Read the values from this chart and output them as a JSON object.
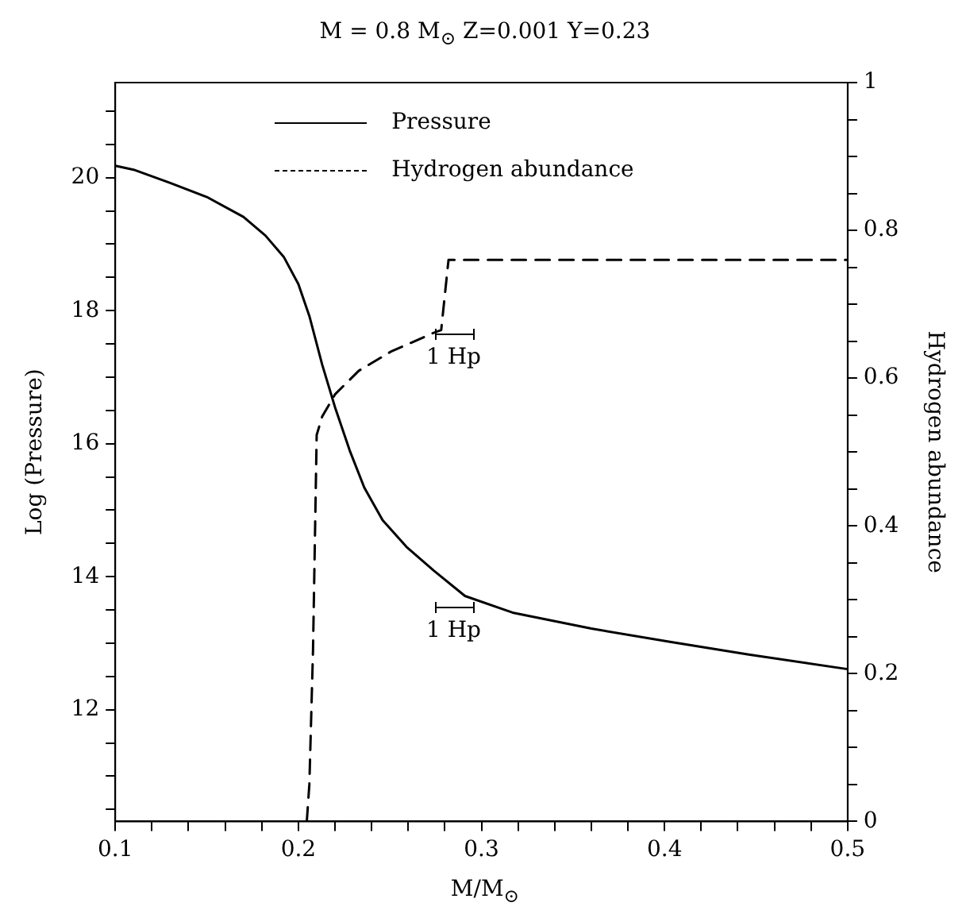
{
  "chart_data": {
    "type": "line",
    "title": "M = 0.8 M$_{⊙}$ Z=0.001 Y=0.23",
    "xlabel": "M/M$_{⊙}$",
    "ylabel": "Log (Pressure)",
    "y2label": "Hydrogen abundance",
    "xlim": [
      0.1,
      0.5
    ],
    "xticks": [
      0.1,
      {
        "value": 0.12,
        "label": null
      },
      {
        "value": 0.14,
        "label": null
      },
      {
        "value": 0.16,
        "label": null
      },
      {
        "value": 0.18,
        "label": null
      },
      0.2,
      {
        "value": 0.22,
        "label": null
      },
      {
        "value": 0.24,
        "label": null
      },
      {
        "value": 0.26,
        "label": null
      },
      {
        "value": 0.28,
        "label": null
      },
      0.3,
      {
        "value": 0.32,
        "label": null
      },
      {
        "value": 0.34,
        "label": null
      },
      {
        "value": 0.36,
        "label": null
      },
      {
        "value": 0.38,
        "label": null
      },
      0.4,
      {
        "value": 0.42,
        "label": null
      },
      {
        "value": 0.44,
        "label": null
      },
      {
        "value": 0.46,
        "label": null
      },
      {
        "value": 0.48,
        "label": null
      },
      0.5
    ],
    "ylim": [
      10.32,
      21.43
    ],
    "yticks": [
      {
        "value": 10.5,
        "label": null
      },
      {
        "value": 11,
        "label": null
      },
      {
        "value": 11.5,
        "label": null
      },
      12,
      {
        "value": 12.5,
        "label": null
      },
      {
        "value": 13,
        "label": null
      },
      {
        "value": 13.5,
        "label": null
      },
      14,
      {
        "value": 14.5,
        "label": null
      },
      {
        "value": 15,
        "label": null
      },
      {
        "value": 15.5,
        "label": null
      },
      16,
      {
        "value": 16.5,
        "label": null
      },
      {
        "value": 17,
        "label": null
      },
      {
        "value": 17.5,
        "label": null
      },
      18,
      {
        "value": 18.5,
        "label": null
      },
      {
        "value": 19,
        "label": null
      },
      {
        "value": 19.5,
        "label": null
      },
      20,
      {
        "value": 20.5,
        "label": null
      },
      {
        "value": 21,
        "label": null
      }
    ],
    "y2lim": [
      0,
      1
    ],
    "y2ticks": [
      0,
      {
        "value": 0.05,
        "label": null
      },
      {
        "value": 0.1,
        "label": null
      },
      {
        "value": 0.15,
        "label": null
      },
      0.2,
      {
        "value": 0.25,
        "label": null
      },
      {
        "value": 0.3,
        "label": null
      },
      {
        "value": 0.35,
        "label": null
      },
      0.4,
      {
        "value": 0.45,
        "label": null
      },
      {
        "value": 0.5,
        "label": null
      },
      {
        "value": 0.55,
        "label": null
      },
      0.6,
      {
        "value": 0.65,
        "label": null
      },
      {
        "value": 0.7,
        "label": null
      },
      {
        "value": 0.75,
        "label": null
      },
      0.8,
      {
        "value": 0.85,
        "label": null
      },
      {
        "value": 0.9,
        "label": null
      },
      {
        "value": 0.95,
        "label": null
      },
      1
    ],
    "legend": "top",
    "marker": "none",
    "grid": false,
    "series": [
      {
        "name": "Pressure",
        "color": "#000000",
        "line_style": "solid",
        "x": [
          0.1,
          0.11,
          0.13,
          0.15,
          0.17,
          0.182,
          0.192,
          0.2,
          0.206,
          0.213,
          0.22,
          0.228,
          0.236,
          0.246,
          0.259,
          0.274,
          0.291,
          0.317,
          0.36,
          0.403,
          0.446,
          0.5
        ],
        "values": [
          20.18,
          20.12,
          19.92,
          19.71,
          19.41,
          19.13,
          18.81,
          18.4,
          17.92,
          17.19,
          16.55,
          15.9,
          15.34,
          14.85,
          14.45,
          14.09,
          13.71,
          13.46,
          13.22,
          13.02,
          12.83,
          12.61
        ]
      },
      {
        "name": "Hydrogen abundance",
        "color": "#000000",
        "line_style": "dashed",
        "axis": "y2",
        "x": [
          0.2046,
          0.206,
          0.208,
          0.2095,
          0.21,
          0.213,
          0.22,
          0.233,
          0.2506,
          0.2736,
          0.278,
          0.282,
          0.5
        ],
        "values": [
          0,
          0.05,
          0.232,
          0.45,
          0.523,
          0.548,
          0.578,
          0.61,
          0.636,
          0.661,
          0.665,
          0.76,
          0.76
        ]
      }
    ],
    "annotations": [
      "1 Hp",
      "1 Hp"
    ]
  }
}
